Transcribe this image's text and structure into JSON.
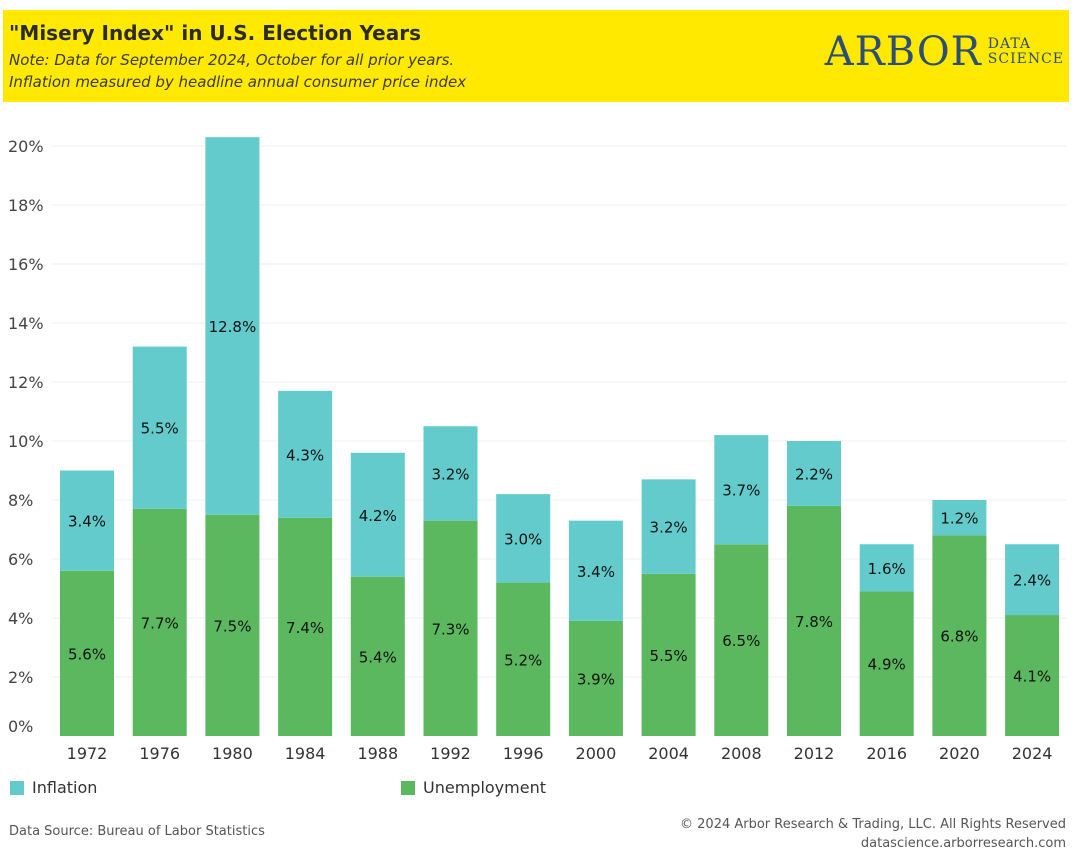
{
  "header": {
    "title": "\"Misery Index\" in U.S. Election Years",
    "note_line1": "Note: Data for September 2024, October for all prior years.",
    "note_line2": "Inflation measured by headline annual consumer price index",
    "background_color": "#ffe900"
  },
  "logo": {
    "main": "ARBOR",
    "sub_top": "DATA",
    "sub_bottom": "SCIENCE"
  },
  "chart_data": {
    "type": "bar",
    "stacked": true,
    "categories": [
      "1972",
      "1976",
      "1980",
      "1984",
      "1988",
      "1992",
      "1996",
      "2000",
      "2004",
      "2008",
      "2012",
      "2016",
      "2020",
      "2024"
    ],
    "series": [
      {
        "name": "Unemployment",
        "color": "#5cb85f",
        "values": [
          5.6,
          7.7,
          7.5,
          7.4,
          5.4,
          7.3,
          5.2,
          3.9,
          5.5,
          6.5,
          7.8,
          4.9,
          6.8,
          4.1
        ],
        "labels": [
          "5.6%",
          "7.7%",
          "7.5%",
          "7.4%",
          "5.4%",
          "7.3%",
          "5.2%",
          "3.9%",
          "5.5%",
          "6.5%",
          "7.8%",
          "4.9%",
          "6.8%",
          "4.1%"
        ]
      },
      {
        "name": "Inflation",
        "color": "#63cbcb",
        "values": [
          3.4,
          5.5,
          12.8,
          4.3,
          4.2,
          3.2,
          3.0,
          3.4,
          3.2,
          3.7,
          2.2,
          1.6,
          1.2,
          2.4
        ],
        "labels": [
          "3.4%",
          "5.5%",
          "12.8%",
          "4.3%",
          "4.2%",
          "3.2%",
          "3.0%",
          "3.4%",
          "3.2%",
          "3.7%",
          "2.2%",
          "1.6%",
          "1.2%",
          "2.4%"
        ]
      }
    ],
    "y_ticks": [
      "0%",
      "2%",
      "4%",
      "6%",
      "8%",
      "10%",
      "12%",
      "14%",
      "16%",
      "18%",
      "20%"
    ],
    "ylim": [
      0,
      20
    ],
    "grid": true,
    "legend_position": "bottom"
  },
  "legend": {
    "inflation": "Inflation",
    "unemployment": "Unemployment"
  },
  "footer": {
    "source": "Data Source: Bureau of Labor Statistics",
    "copyright": "© 2024 Arbor Research & Trading, LLC. All Rights Reserved",
    "website": "datascience.arborresearch.com"
  }
}
